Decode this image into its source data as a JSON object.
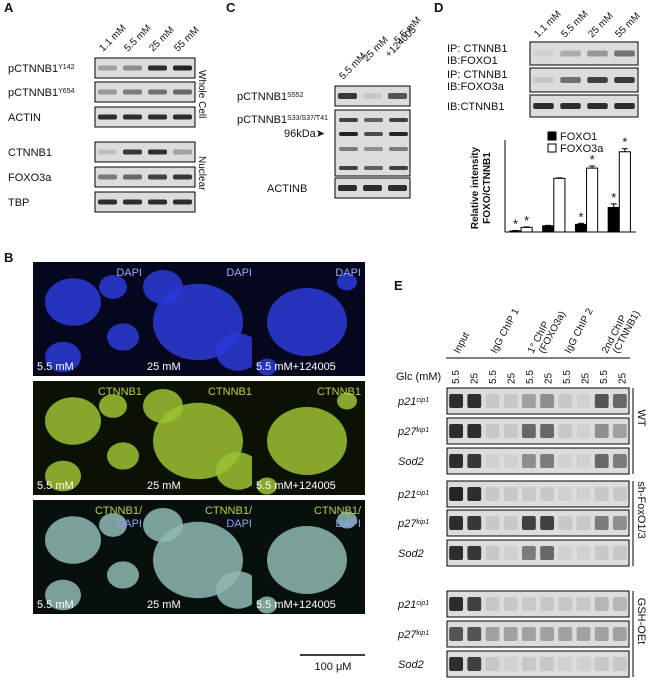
{
  "panel_A": {
    "label": "A",
    "lanes": [
      "1.1 mM",
      "5.5 mM",
      "25 mM",
      "55 mM"
    ],
    "rows": [
      {
        "name": "pCTNNB1",
        "sup": "Y142"
      },
      {
        "name": "pCTNNB1",
        "sup": "Y654"
      },
      {
        "name": "ACTIN"
      },
      {
        "name": "CTNNB1"
      },
      {
        "name": "FOXO3a"
      },
      {
        "name": "TBP"
      }
    ],
    "fractions": [
      "Whole Cell",
      "Nuclear"
    ]
  },
  "panel_C": {
    "label": "C",
    "lanes": [
      "5.5 mM",
      "25 mM",
      [
        "5.5 mM",
        "+124005"
      ]
    ],
    "rows": [
      {
        "name": "pCTNNB1",
        "sup": "S552"
      },
      {
        "name": "pCTNNB1",
        "sup": "S33/S37/T41"
      },
      {
        "name": "ACTINB"
      }
    ],
    "marker": "96kDa➤"
  },
  "panel_D": {
    "label": "D",
    "lanes": [
      "1.1 mM",
      "5.5 mM",
      "25 mM",
      "55 mM"
    ],
    "rows": [
      [
        "IP: CTNNB1",
        "IB:FOXO1"
      ],
      [
        "IP: CTNNB1",
        "IB:FOXO3a"
      ],
      [
        "IB:CTNNB1"
      ]
    ]
  },
  "chart_data": {
    "type": "bar",
    "y_label": [
      "Relative intensity",
      "FOXO/CTNNB1"
    ],
    "ylim": [
      0,
      1.8
    ],
    "series": [
      {
        "name": "FOXO1",
        "color": "#000000",
        "values": [
          0.02,
          0.12,
          0.15,
          0.48
        ],
        "errors": [
          0.01,
          0.01,
          0.02,
          0.07
        ],
        "stars": [
          "*",
          null,
          "*",
          "*"
        ]
      },
      {
        "name": "FOXO3a",
        "color": "#ffffff",
        "values": [
          0.09,
          1.05,
          1.25,
          1.57
        ],
        "errors": [
          0.01,
          0.01,
          0.04,
          0.06
        ],
        "stars": [
          "*",
          null,
          "*",
          "*"
        ]
      }
    ]
  },
  "panel_B": {
    "label": "B",
    "stains": [
      "DAPI",
      "CTNNB1",
      [
        "CTNNB1/",
        "DAPI"
      ]
    ],
    "conditions": [
      "5.5 mM",
      "25 mM",
      "5.5 mM+124005"
    ],
    "scale_bar": "100 μM"
  },
  "panel_E": {
    "label": "E",
    "columns": [
      [
        "Input"
      ],
      [
        "IgG ChIP 1"
      ],
      [
        "1° ChIP",
        "(FOXO3a)"
      ],
      [
        "IgG ChIP 2"
      ],
      [
        "2nd ChIP",
        "(CTNNB1)"
      ]
    ],
    "glc_label": "Glc (mM)",
    "lanes": [
      "5.5",
      "25",
      "5.5",
      "25",
      "5.5",
      "25",
      "5.5",
      "25",
      "5.5",
      "25"
    ],
    "genes": [
      {
        "name": "p21",
        "sup": "cip1"
      },
      {
        "name": "p27",
        "sup": "kip1"
      },
      {
        "name": "Sod2"
      }
    ],
    "groups": [
      "WT",
      "sh-FoxO1/3",
      "GSH-OEt"
    ]
  }
}
